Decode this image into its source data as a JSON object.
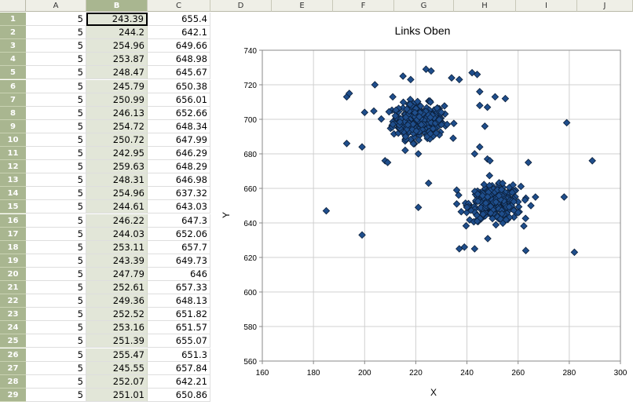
{
  "spreadsheet": {
    "columns": [
      "A",
      "B",
      "C",
      "D",
      "E",
      "F",
      "G",
      "H",
      "I",
      "J"
    ],
    "selected_column": "B",
    "active_cell": "B1",
    "rows": [
      {
        "row": "1",
        "a": "5",
        "b": "243.39",
        "c": "655.4"
      },
      {
        "row": "2",
        "a": "5",
        "b": "244.2",
        "c": "642.1"
      },
      {
        "row": "3",
        "a": "5",
        "b": "254.96",
        "c": "649.66"
      },
      {
        "row": "4",
        "a": "5",
        "b": "253.87",
        "c": "648.98"
      },
      {
        "row": "5",
        "a": "5",
        "b": "248.47",
        "c": "645.67"
      },
      {
        "row": "6",
        "a": "5",
        "b": "245.79",
        "c": "650.38"
      },
      {
        "row": "7",
        "a": "5",
        "b": "250.99",
        "c": "656.01"
      },
      {
        "row": "8",
        "a": "5",
        "b": "246.13",
        "c": "652.66"
      },
      {
        "row": "9",
        "a": "5",
        "b": "254.72",
        "c": "648.34"
      },
      {
        "row": "10",
        "a": "5",
        "b": "250.72",
        "c": "647.99"
      },
      {
        "row": "11",
        "a": "5",
        "b": "242.95",
        "c": "646.29"
      },
      {
        "row": "12",
        "a": "5",
        "b": "259.63",
        "c": "648.29"
      },
      {
        "row": "13",
        "a": "5",
        "b": "248.31",
        "c": "646.98"
      },
      {
        "row": "14",
        "a": "5",
        "b": "254.96",
        "c": "637.32"
      },
      {
        "row": "15",
        "a": "5",
        "b": "244.61",
        "c": "643.03"
      },
      {
        "row": "16",
        "a": "5",
        "b": "246.22",
        "c": "647.3"
      },
      {
        "row": "17",
        "a": "5",
        "b": "244.03",
        "c": "652.06"
      },
      {
        "row": "18",
        "a": "5",
        "b": "253.11",
        "c": "657.7"
      },
      {
        "row": "19",
        "a": "5",
        "b": "243.39",
        "c": "649.73"
      },
      {
        "row": "20",
        "a": "5",
        "b": "247.79",
        "c": "646"
      },
      {
        "row": "21",
        "a": "5",
        "b": "252.61",
        "c": "657.33"
      },
      {
        "row": "22",
        "a": "5",
        "b": "249.36",
        "c": "648.13"
      },
      {
        "row": "23",
        "a": "5",
        "b": "252.52",
        "c": "651.82"
      },
      {
        "row": "24",
        "a": "5",
        "b": "253.16",
        "c": "651.57"
      },
      {
        "row": "25",
        "a": "5",
        "b": "251.39",
        "c": "655.07"
      },
      {
        "row": "26",
        "a": "5",
        "b": "255.47",
        "c": "651.3"
      },
      {
        "row": "27",
        "a": "5",
        "b": "245.55",
        "c": "657.84"
      },
      {
        "row": "28",
        "a": "5",
        "b": "252.07",
        "c": "642.21"
      },
      {
        "row": "29",
        "a": "5",
        "b": "251.01",
        "c": "650.86"
      }
    ]
  },
  "chart_data": {
    "type": "scatter",
    "title": "Links Oben",
    "xlabel": "X",
    "ylabel": "Y",
    "xlim": [
      160,
      300
    ],
    "ylim": [
      560,
      740
    ],
    "xticks": [
      "160",
      "180",
      "200",
      "220",
      "240",
      "260",
      "280",
      "300"
    ],
    "yticks": [
      "560",
      "580",
      "600",
      "620",
      "640",
      "660",
      "680",
      "700",
      "720",
      "740"
    ],
    "grid": true,
    "marker": "diamond",
    "marker_color": "#1f4e8c",
    "clusters": [
      {
        "center_x": 221,
        "center_y": 699,
        "sd_x": 5,
        "sd_y": 5,
        "count": 300
      },
      {
        "center_x": 251,
        "center_y": 651,
        "sd_x": 5,
        "sd_y": 5,
        "count": 300
      }
    ],
    "points": [
      [
        185,
        647
      ],
      [
        193,
        713
      ],
      [
        194,
        715
      ],
      [
        193,
        686
      ],
      [
        199,
        633
      ],
      [
        200,
        704
      ],
      [
        199,
        684
      ],
      [
        204,
        720
      ],
      [
        208,
        676
      ],
      [
        209,
        675
      ],
      [
        211,
        713
      ],
      [
        215,
        725
      ],
      [
        218,
        723
      ],
      [
        221,
        649
      ],
      [
        221,
        680
      ],
      [
        225,
        663
      ],
      [
        224,
        729
      ],
      [
        226,
        728
      ],
      [
        234,
        724
      ],
      [
        237,
        723
      ],
      [
        236,
        659
      ],
      [
        237,
        625
      ],
      [
        239,
        626
      ],
      [
        242,
        727
      ],
      [
        244,
        726
      ],
      [
        245,
        716
      ],
      [
        243,
        625
      ],
      [
        245,
        708
      ],
      [
        248,
        707
      ],
      [
        251,
        713
      ],
      [
        255,
        712
      ],
      [
        247,
        696
      ],
      [
        245,
        684
      ],
      [
        243,
        680
      ],
      [
        248,
        677
      ],
      [
        249,
        676
      ],
      [
        263,
        624
      ],
      [
        264,
        675
      ],
      [
        265,
        650
      ],
      [
        279,
        698
      ],
      [
        278,
        655
      ],
      [
        282,
        623
      ],
      [
        289,
        676
      ],
      [
        240,
        649
      ],
      [
        260,
        646
      ],
      [
        244,
        641
      ],
      [
        258,
        662
      ],
      [
        236,
        651
      ],
      [
        212,
        702
      ],
      [
        216,
        690
      ],
      [
        230,
        704
      ],
      [
        228,
        692
      ]
    ]
  }
}
